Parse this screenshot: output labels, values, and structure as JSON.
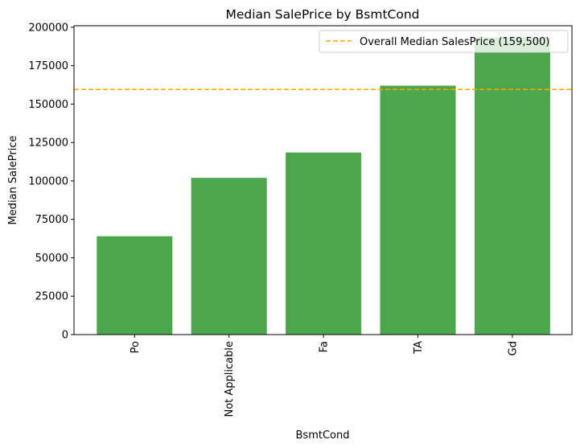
{
  "chart_data": {
    "type": "bar",
    "title": "Median SalePrice by BsmtCond",
    "xlabel": "BsmtCond",
    "ylabel": "Median SalePrice",
    "categories": [
      "Po",
      "Not Applicable",
      "Fa",
      "TA",
      "Gd"
    ],
    "values": [
      64000,
      102000,
      118500,
      162000,
      193500
    ],
    "ylim": [
      0,
      201000
    ],
    "yticks": [
      0,
      25000,
      50000,
      75000,
      100000,
      125000,
      150000,
      175000,
      200000
    ],
    "bar_color": "#4ca64c",
    "reference_line": {
      "value": 159500,
      "label": "Overall Median SalesPrice (159,500)",
      "color": "#ffa500",
      "style": "dashed"
    },
    "legend": {
      "position": "top-right"
    },
    "grid": false
  }
}
